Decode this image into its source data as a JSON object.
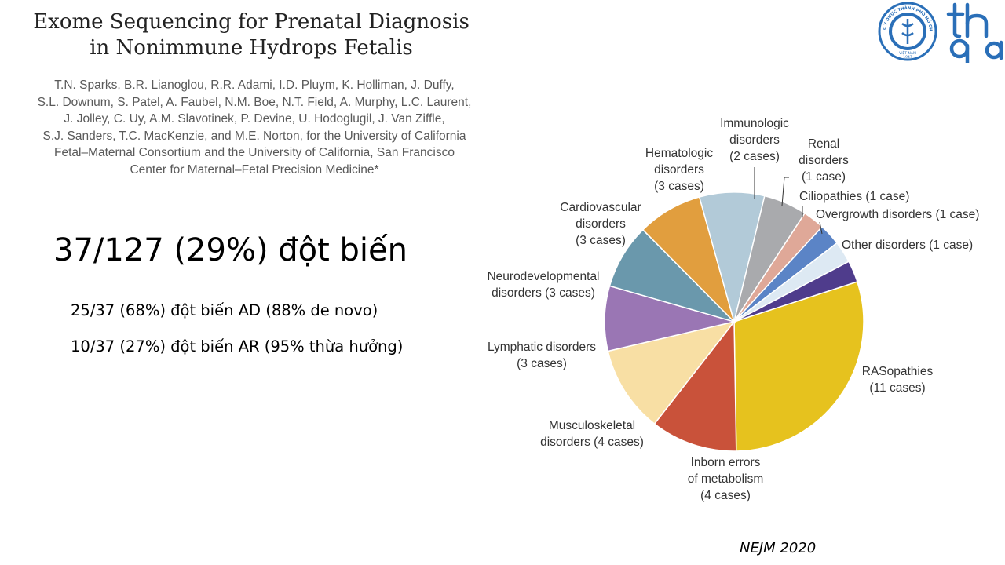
{
  "title": {
    "lines": [
      "Exome Sequencing for Prenatal Diagnosis",
      "in Nonimmune Hydrops Fetalis"
    ]
  },
  "authors": {
    "lines": [
      "T.N. Sparks, B.R. Lianoglou, R.R. Adami, I.D. Pluym, K. Holliman, J. Duffy,",
      "S.L. Downum, S. Patel, A. Faubel, N.M. Boe, N.T. Field, A. Murphy, L.C. Laurent,",
      "J. Jolley, C. Uy, A.M. Slavotinek, P. Devine, U. Hodoglugil, J. Van Ziffle,",
      "S.J. Sanders, T.C. MacKenzie, and M.E. Norton, for the University of California",
      "Fetal–Maternal Consortium and the University of California, San Francisco",
      "Center for Maternal–Fetal Precision Medicine*"
    ]
  },
  "headline": "37/127 (29%) đột biến",
  "stats": [
    "25/37 (68%) đột biến AD (88% de novo)",
    "10/37 (27%) đột biến AR (95% thừa hưởng)"
  ],
  "citation": "NEJM 2020",
  "logo": {
    "seal_text": "ĐẠI HỌC Y DƯỢC THÀNH PHỐ HỒ CHÍ MINH",
    "seal_country": "VIỆT NAM",
    "seal_year": "1947",
    "color": "#2a6fb8"
  },
  "chart_data": {
    "type": "pie",
    "unit": "cases",
    "slices": [
      {
        "category": "RASopathies",
        "value": 11,
        "label_lines": [
          "RASopathies",
          "(11 cases)"
        ],
        "color": "#e6c21e"
      },
      {
        "category": "Inborn errors of metabolism",
        "value": 4,
        "label_lines": [
          "Inborn errors",
          "of metabolism",
          "(4 cases)"
        ],
        "color": "#c9523a"
      },
      {
        "category": "Musculoskeletal disorders",
        "value": 4,
        "label_lines": [
          "Musculoskeletal",
          "disorders (4 cases)"
        ],
        "color": "#f8dfa4"
      },
      {
        "category": "Lymphatic disorders",
        "value": 3,
        "label_lines": [
          "Lymphatic disorders",
          "(3 cases)"
        ],
        "color": "#9a76b4"
      },
      {
        "category": "Neurodevelopmental disorders",
        "value": 3,
        "label_lines": [
          "Neurodevelopmental",
          "disorders (3 cases)"
        ],
        "color": "#6a98ac"
      },
      {
        "category": "Cardiovascular disorders",
        "value": 3,
        "label_lines": [
          "Cardiovascular",
          "disorders",
          "(3 cases)"
        ],
        "color": "#e19e3e"
      },
      {
        "category": "Hematologic disorders",
        "value": 3,
        "label_lines": [
          "Hematologic",
          "disorders",
          "(3 cases)"
        ],
        "color": "#b2cad8"
      },
      {
        "category": "Immunologic disorders",
        "value": 2,
        "label_lines": [
          "Immunologic",
          "disorders",
          "(2 cases)"
        ],
        "color": "#a9aaad"
      },
      {
        "category": "Renal disorders",
        "value": 1,
        "label_lines": [
          "Renal",
          "disorders",
          "(1 case)"
        ],
        "color": "#dfa898"
      },
      {
        "category": "Ciliopathies",
        "value": 1,
        "label_lines": [
          "Ciliopathies (1 case)"
        ],
        "color": "#5b84c6"
      },
      {
        "category": "Overgrowth disorders",
        "value": 1,
        "label_lines": [
          "Overgrowth disorders (1 case)"
        ],
        "color": "#dde9f3"
      },
      {
        "category": "Other disorders",
        "value": 1,
        "label_lines": [
          "Other disorders (1 case)"
        ],
        "color": "#4f3c8c"
      }
    ]
  }
}
